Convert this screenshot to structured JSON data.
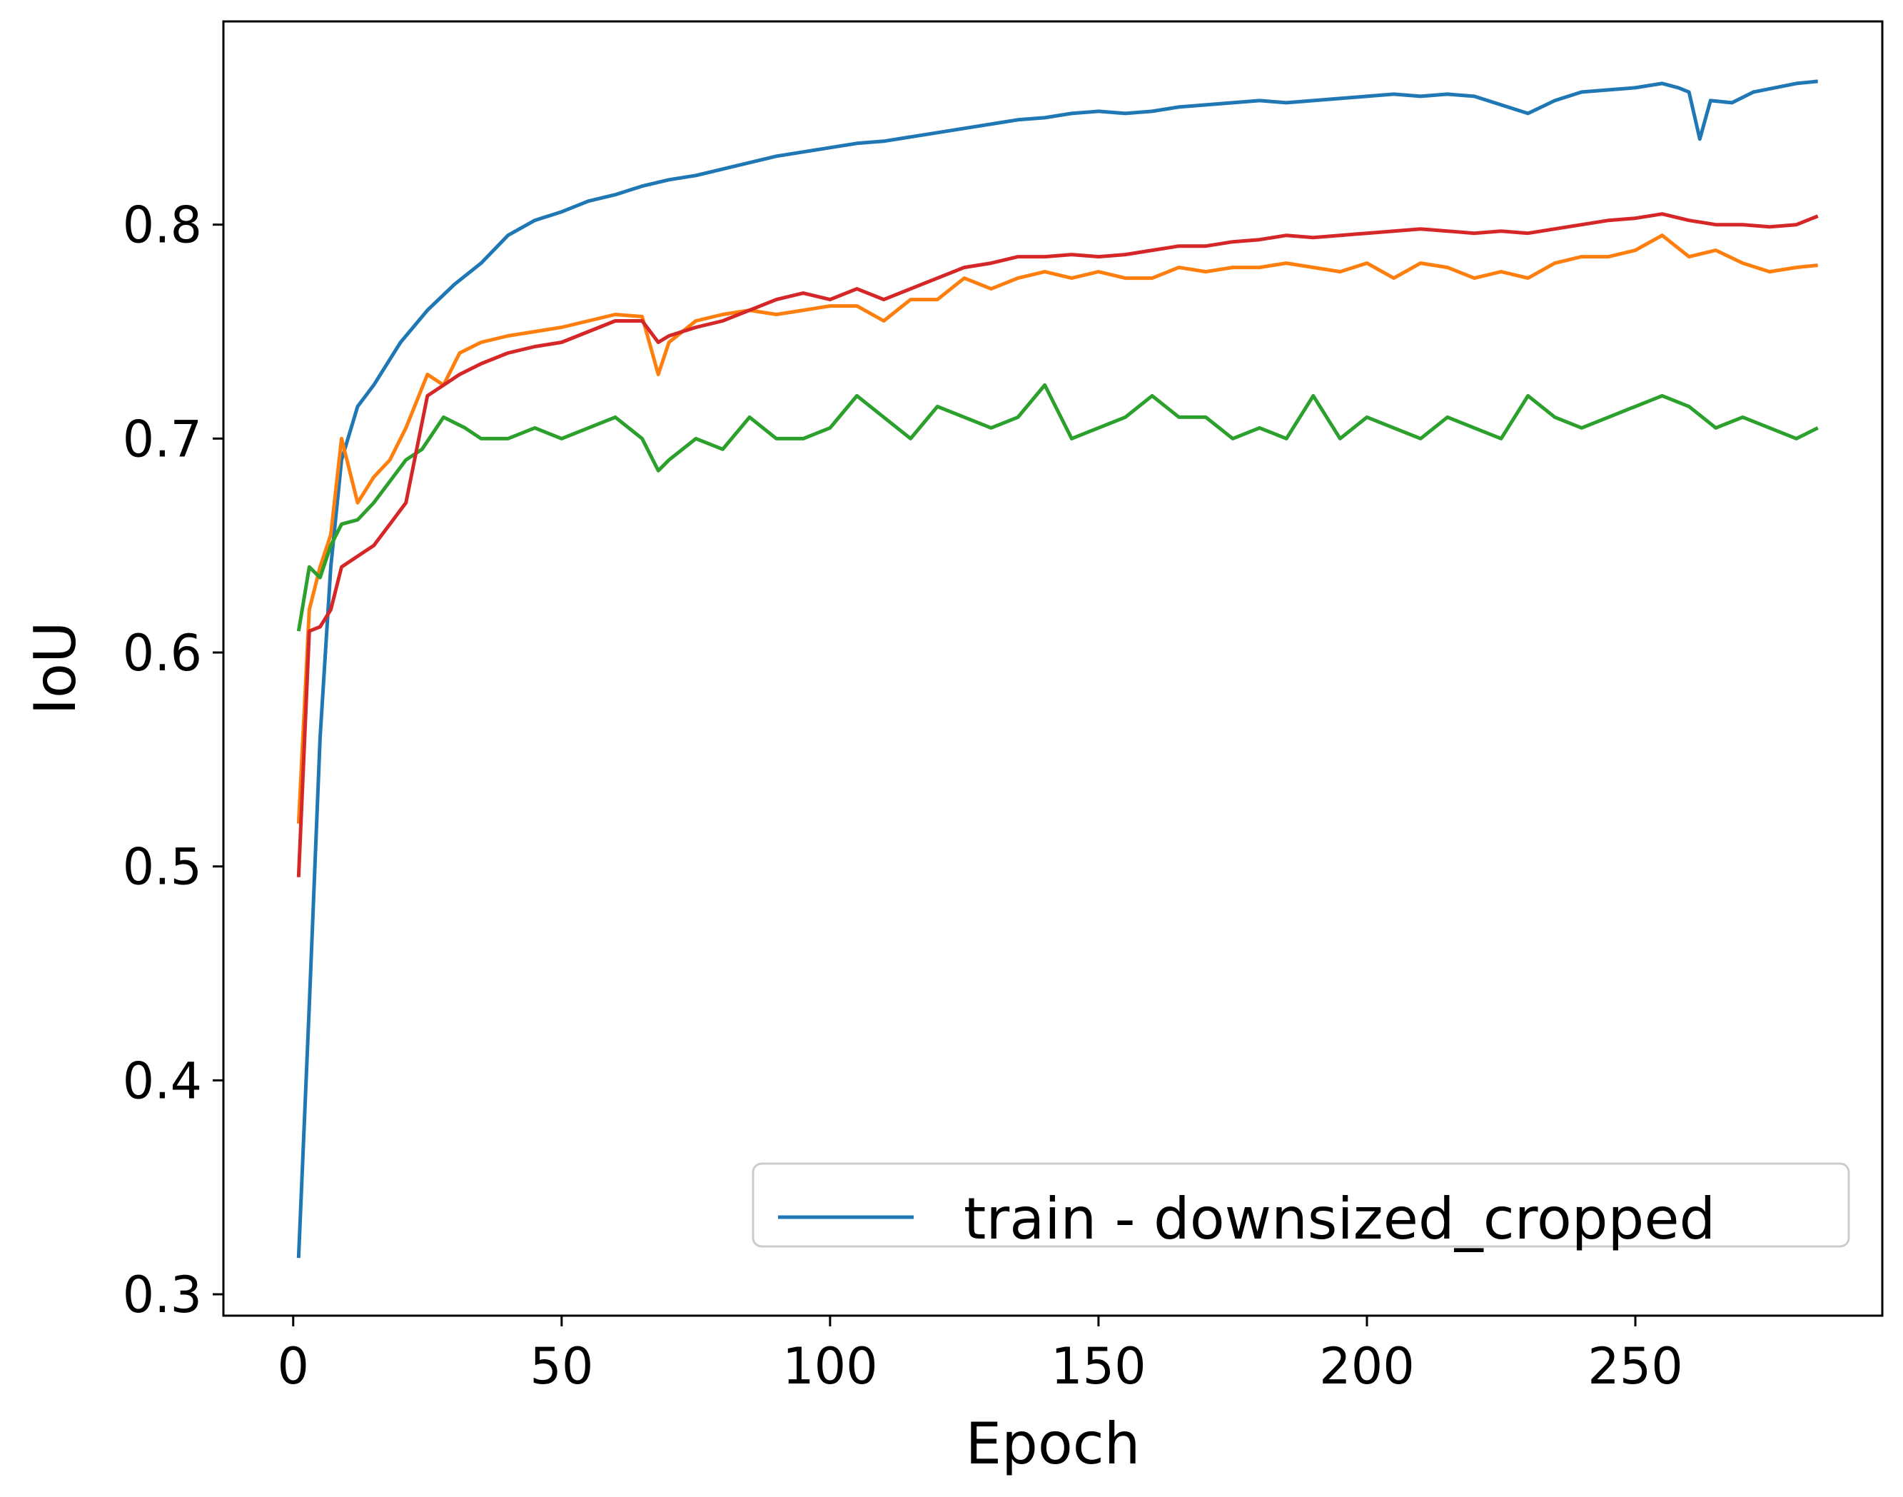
{
  "chart_data": {
    "type": "line",
    "title": "",
    "xlabel": "Epoch",
    "ylabel": "IoU",
    "xlim": [
      -13,
      296
    ],
    "ylim": [
      0.29,
      0.895
    ],
    "xticks": [
      "0",
      "50",
      "100",
      "150",
      "200",
      "250"
    ],
    "yticks": [
      "0.3",
      "0.4",
      "0.5",
      "0.6",
      "0.7",
      "0.8"
    ],
    "grid": false,
    "legend_position": "lower-right",
    "series": [
      {
        "name": "train - downsized_cropped",
        "color": "#1f77b4",
        "in_legend": true,
        "points": [
          [
            1,
            0.317
          ],
          [
            3,
            0.435
          ],
          [
            5,
            0.56
          ],
          [
            7,
            0.64
          ],
          [
            9,
            0.69
          ],
          [
            12,
            0.715
          ],
          [
            15,
            0.725
          ],
          [
            20,
            0.745
          ],
          [
            25,
            0.76
          ],
          [
            30,
            0.772
          ],
          [
            35,
            0.782
          ],
          [
            40,
            0.795
          ],
          [
            45,
            0.802
          ],
          [
            50,
            0.806
          ],
          [
            55,
            0.811
          ],
          [
            60,
            0.814
          ],
          [
            65,
            0.818
          ],
          [
            70,
            0.821
          ],
          [
            75,
            0.823
          ],
          [
            80,
            0.826
          ],
          [
            85,
            0.829
          ],
          [
            90,
            0.832
          ],
          [
            95,
            0.834
          ],
          [
            100,
            0.836
          ],
          [
            105,
            0.838
          ],
          [
            110,
            0.839
          ],
          [
            115,
            0.841
          ],
          [
            120,
            0.843
          ],
          [
            125,
            0.845
          ],
          [
            130,
            0.847
          ],
          [
            135,
            0.849
          ],
          [
            140,
            0.85
          ],
          [
            145,
            0.852
          ],
          [
            150,
            0.853
          ],
          [
            155,
            0.852
          ],
          [
            160,
            0.853
          ],
          [
            165,
            0.855
          ],
          [
            170,
            0.856
          ],
          [
            175,
            0.857
          ],
          [
            180,
            0.858
          ],
          [
            185,
            0.857
          ],
          [
            190,
            0.858
          ],
          [
            195,
            0.859
          ],
          [
            200,
            0.86
          ],
          [
            205,
            0.861
          ],
          [
            210,
            0.86
          ],
          [
            215,
            0.861
          ],
          [
            220,
            0.86
          ],
          [
            225,
            0.856
          ],
          [
            230,
            0.852
          ],
          [
            235,
            0.858
          ],
          [
            240,
            0.862
          ],
          [
            245,
            0.863
          ],
          [
            250,
            0.864
          ],
          [
            255,
            0.866
          ],
          [
            258,
            0.864
          ],
          [
            260,
            0.862
          ],
          [
            262,
            0.84
          ],
          [
            264,
            0.858
          ],
          [
            268,
            0.857
          ],
          [
            272,
            0.862
          ],
          [
            276,
            0.864
          ],
          [
            280,
            0.866
          ],
          [
            284,
            0.867
          ]
        ]
      },
      {
        "name": "",
        "color": "#ff7f0e",
        "in_legend": false,
        "points": [
          [
            1,
            0.52
          ],
          [
            3,
            0.62
          ],
          [
            5,
            0.64
          ],
          [
            7,
            0.655
          ],
          [
            9,
            0.7
          ],
          [
            12,
            0.67
          ],
          [
            15,
            0.682
          ],
          [
            18,
            0.69
          ],
          [
            21,
            0.705
          ],
          [
            25,
            0.73
          ],
          [
            28,
            0.725
          ],
          [
            31,
            0.74
          ],
          [
            35,
            0.745
          ],
          [
            40,
            0.748
          ],
          [
            45,
            0.75
          ],
          [
            50,
            0.752
          ],
          [
            55,
            0.755
          ],
          [
            60,
            0.758
          ],
          [
            65,
            0.757
          ],
          [
            68,
            0.73
          ],
          [
            70,
            0.745
          ],
          [
            75,
            0.755
          ],
          [
            80,
            0.758
          ],
          [
            85,
            0.76
          ],
          [
            90,
            0.758
          ],
          [
            95,
            0.76
          ],
          [
            100,
            0.762
          ],
          [
            105,
            0.762
          ],
          [
            110,
            0.755
          ],
          [
            115,
            0.765
          ],
          [
            120,
            0.765
          ],
          [
            125,
            0.775
          ],
          [
            130,
            0.77
          ],
          [
            135,
            0.775
          ],
          [
            140,
            0.778
          ],
          [
            145,
            0.775
          ],
          [
            150,
            0.778
          ],
          [
            155,
            0.775
          ],
          [
            160,
            0.775
          ],
          [
            165,
            0.78
          ],
          [
            170,
            0.778
          ],
          [
            175,
            0.78
          ],
          [
            180,
            0.78
          ],
          [
            185,
            0.782
          ],
          [
            190,
            0.78
          ],
          [
            195,
            0.778
          ],
          [
            200,
            0.782
          ],
          [
            205,
            0.775
          ],
          [
            210,
            0.782
          ],
          [
            215,
            0.78
          ],
          [
            220,
            0.775
          ],
          [
            225,
            0.778
          ],
          [
            230,
            0.775
          ],
          [
            235,
            0.782
          ],
          [
            240,
            0.785
          ],
          [
            245,
            0.785
          ],
          [
            250,
            0.788
          ],
          [
            255,
            0.795
          ],
          [
            260,
            0.785
          ],
          [
            265,
            0.788
          ],
          [
            270,
            0.782
          ],
          [
            275,
            0.778
          ],
          [
            280,
            0.78
          ],
          [
            284,
            0.781
          ]
        ]
      },
      {
        "name": "",
        "color": "#2ca02c",
        "in_legend": false,
        "points": [
          [
            1,
            0.61
          ],
          [
            3,
            0.64
          ],
          [
            5,
            0.635
          ],
          [
            7,
            0.65
          ],
          [
            9,
            0.66
          ],
          [
            12,
            0.662
          ],
          [
            15,
            0.67
          ],
          [
            18,
            0.68
          ],
          [
            21,
            0.69
          ],
          [
            24,
            0.695
          ],
          [
            28,
            0.71
          ],
          [
            32,
            0.705
          ],
          [
            35,
            0.7
          ],
          [
            40,
            0.7
          ],
          [
            45,
            0.705
          ],
          [
            50,
            0.7
          ],
          [
            55,
            0.705
          ],
          [
            60,
            0.71
          ],
          [
            65,
            0.7
          ],
          [
            68,
            0.685
          ],
          [
            70,
            0.69
          ],
          [
            75,
            0.7
          ],
          [
            80,
            0.695
          ],
          [
            85,
            0.71
          ],
          [
            90,
            0.7
          ],
          [
            95,
            0.7
          ],
          [
            100,
            0.705
          ],
          [
            105,
            0.72
          ],
          [
            110,
            0.71
          ],
          [
            115,
            0.7
          ],
          [
            120,
            0.715
          ],
          [
            125,
            0.71
          ],
          [
            130,
            0.705
          ],
          [
            135,
            0.71
          ],
          [
            140,
            0.725
          ],
          [
            145,
            0.7
          ],
          [
            150,
            0.705
          ],
          [
            155,
            0.71
          ],
          [
            160,
            0.72
          ],
          [
            165,
            0.71
          ],
          [
            170,
            0.71
          ],
          [
            175,
            0.7
          ],
          [
            180,
            0.705
          ],
          [
            185,
            0.7
          ],
          [
            190,
            0.72
          ],
          [
            195,
            0.7
          ],
          [
            200,
            0.71
          ],
          [
            205,
            0.705
          ],
          [
            210,
            0.7
          ],
          [
            215,
            0.71
          ],
          [
            220,
            0.705
          ],
          [
            225,
            0.7
          ],
          [
            230,
            0.72
          ],
          [
            235,
            0.71
          ],
          [
            240,
            0.705
          ],
          [
            245,
            0.71
          ],
          [
            250,
            0.715
          ],
          [
            255,
            0.72
          ],
          [
            260,
            0.715
          ],
          [
            265,
            0.705
          ],
          [
            270,
            0.71
          ],
          [
            275,
            0.705
          ],
          [
            280,
            0.7
          ],
          [
            284,
            0.705
          ]
        ]
      },
      {
        "name": "",
        "color": "#d62728",
        "in_legend": false,
        "points": [
          [
            1,
            0.495
          ],
          [
            3,
            0.61
          ],
          [
            5,
            0.612
          ],
          [
            7,
            0.62
          ],
          [
            9,
            0.64
          ],
          [
            12,
            0.645
          ],
          [
            15,
            0.65
          ],
          [
            18,
            0.66
          ],
          [
            21,
            0.67
          ],
          [
            25,
            0.72
          ],
          [
            28,
            0.725
          ],
          [
            31,
            0.73
          ],
          [
            35,
            0.735
          ],
          [
            40,
            0.74
          ],
          [
            45,
            0.743
          ],
          [
            50,
            0.745
          ],
          [
            55,
            0.75
          ],
          [
            60,
            0.755
          ],
          [
            65,
            0.755
          ],
          [
            68,
            0.745
          ],
          [
            70,
            0.748
          ],
          [
            75,
            0.752
          ],
          [
            80,
            0.755
          ],
          [
            85,
            0.76
          ],
          [
            90,
            0.765
          ],
          [
            95,
            0.768
          ],
          [
            100,
            0.765
          ],
          [
            105,
            0.77
          ],
          [
            110,
            0.765
          ],
          [
            115,
            0.77
          ],
          [
            120,
            0.775
          ],
          [
            125,
            0.78
          ],
          [
            130,
            0.782
          ],
          [
            135,
            0.785
          ],
          [
            140,
            0.785
          ],
          [
            145,
            0.786
          ],
          [
            150,
            0.785
          ],
          [
            155,
            0.786
          ],
          [
            160,
            0.788
          ],
          [
            165,
            0.79
          ],
          [
            170,
            0.79
          ],
          [
            175,
            0.792
          ],
          [
            180,
            0.793
          ],
          [
            185,
            0.795
          ],
          [
            190,
            0.794
          ],
          [
            195,
            0.795
          ],
          [
            200,
            0.796
          ],
          [
            205,
            0.797
          ],
          [
            210,
            0.798
          ],
          [
            215,
            0.797
          ],
          [
            220,
            0.796
          ],
          [
            225,
            0.797
          ],
          [
            230,
            0.796
          ],
          [
            235,
            0.798
          ],
          [
            240,
            0.8
          ],
          [
            245,
            0.802
          ],
          [
            250,
            0.803
          ],
          [
            255,
            0.805
          ],
          [
            260,
            0.802
          ],
          [
            265,
            0.8
          ],
          [
            270,
            0.8
          ],
          [
            275,
            0.799
          ],
          [
            280,
            0.8
          ],
          [
            284,
            0.804
          ]
        ]
      }
    ]
  }
}
